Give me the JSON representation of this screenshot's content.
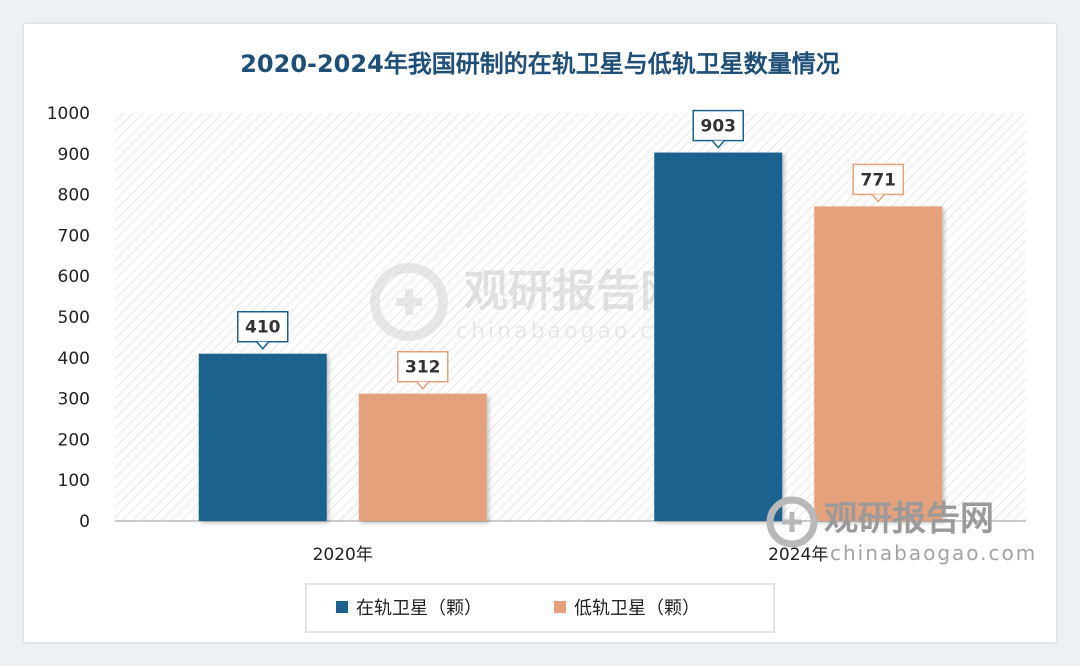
{
  "chart_data": {
    "type": "bar",
    "title": "2020-2024年我国研制的在轨卫星与低轨卫星数量情况",
    "categories": [
      "2020年",
      "2024年"
    ],
    "series": [
      {
        "name": "在轨卫星（颗）",
        "values": [
          410,
          903
        ],
        "color": "#1a628e"
      },
      {
        "name": "低轨卫星（颗）",
        "values": [
          312,
          771
        ],
        "color": "#e5a07c"
      }
    ],
    "ylim": [
      0,
      1000
    ],
    "yticks": [
      0,
      100,
      200,
      300,
      400,
      500,
      600,
      700,
      800,
      900,
      1000
    ],
    "xlabel": "",
    "ylabel": "",
    "legend_position": "bottom",
    "grid": false,
    "background_pattern": "diagonal-hatch"
  },
  "watermark": {
    "brand": "观研报告网",
    "url": "chinabaogao.com"
  }
}
